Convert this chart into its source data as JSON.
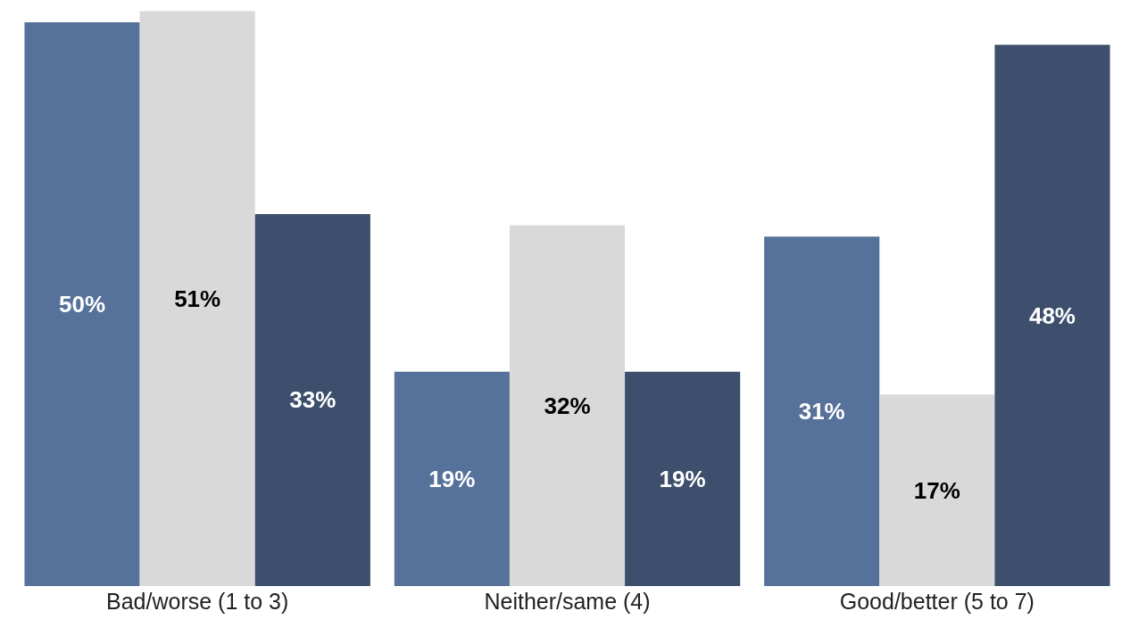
{
  "chart_data": {
    "type": "bar",
    "categories": [
      "Bad/worse (1 to 3)",
      "Neither/same (4)",
      "Good/better (5 to 7)"
    ],
    "series": [
      {
        "color": "#56719a",
        "values": [
          50,
          19,
          31
        ],
        "value_labels": [
          "50%",
          "19%",
          "31%"
        ]
      },
      {
        "color": "#d9d9d9",
        "values": [
          51,
          32,
          17
        ],
        "value_labels": [
          "51%",
          "32%",
          "17%"
        ]
      },
      {
        "color": "#3d4f6c",
        "values": [
          33,
          19,
          48
        ],
        "value_labels": [
          "33%",
          "19%",
          "48%"
        ]
      }
    ]
  }
}
